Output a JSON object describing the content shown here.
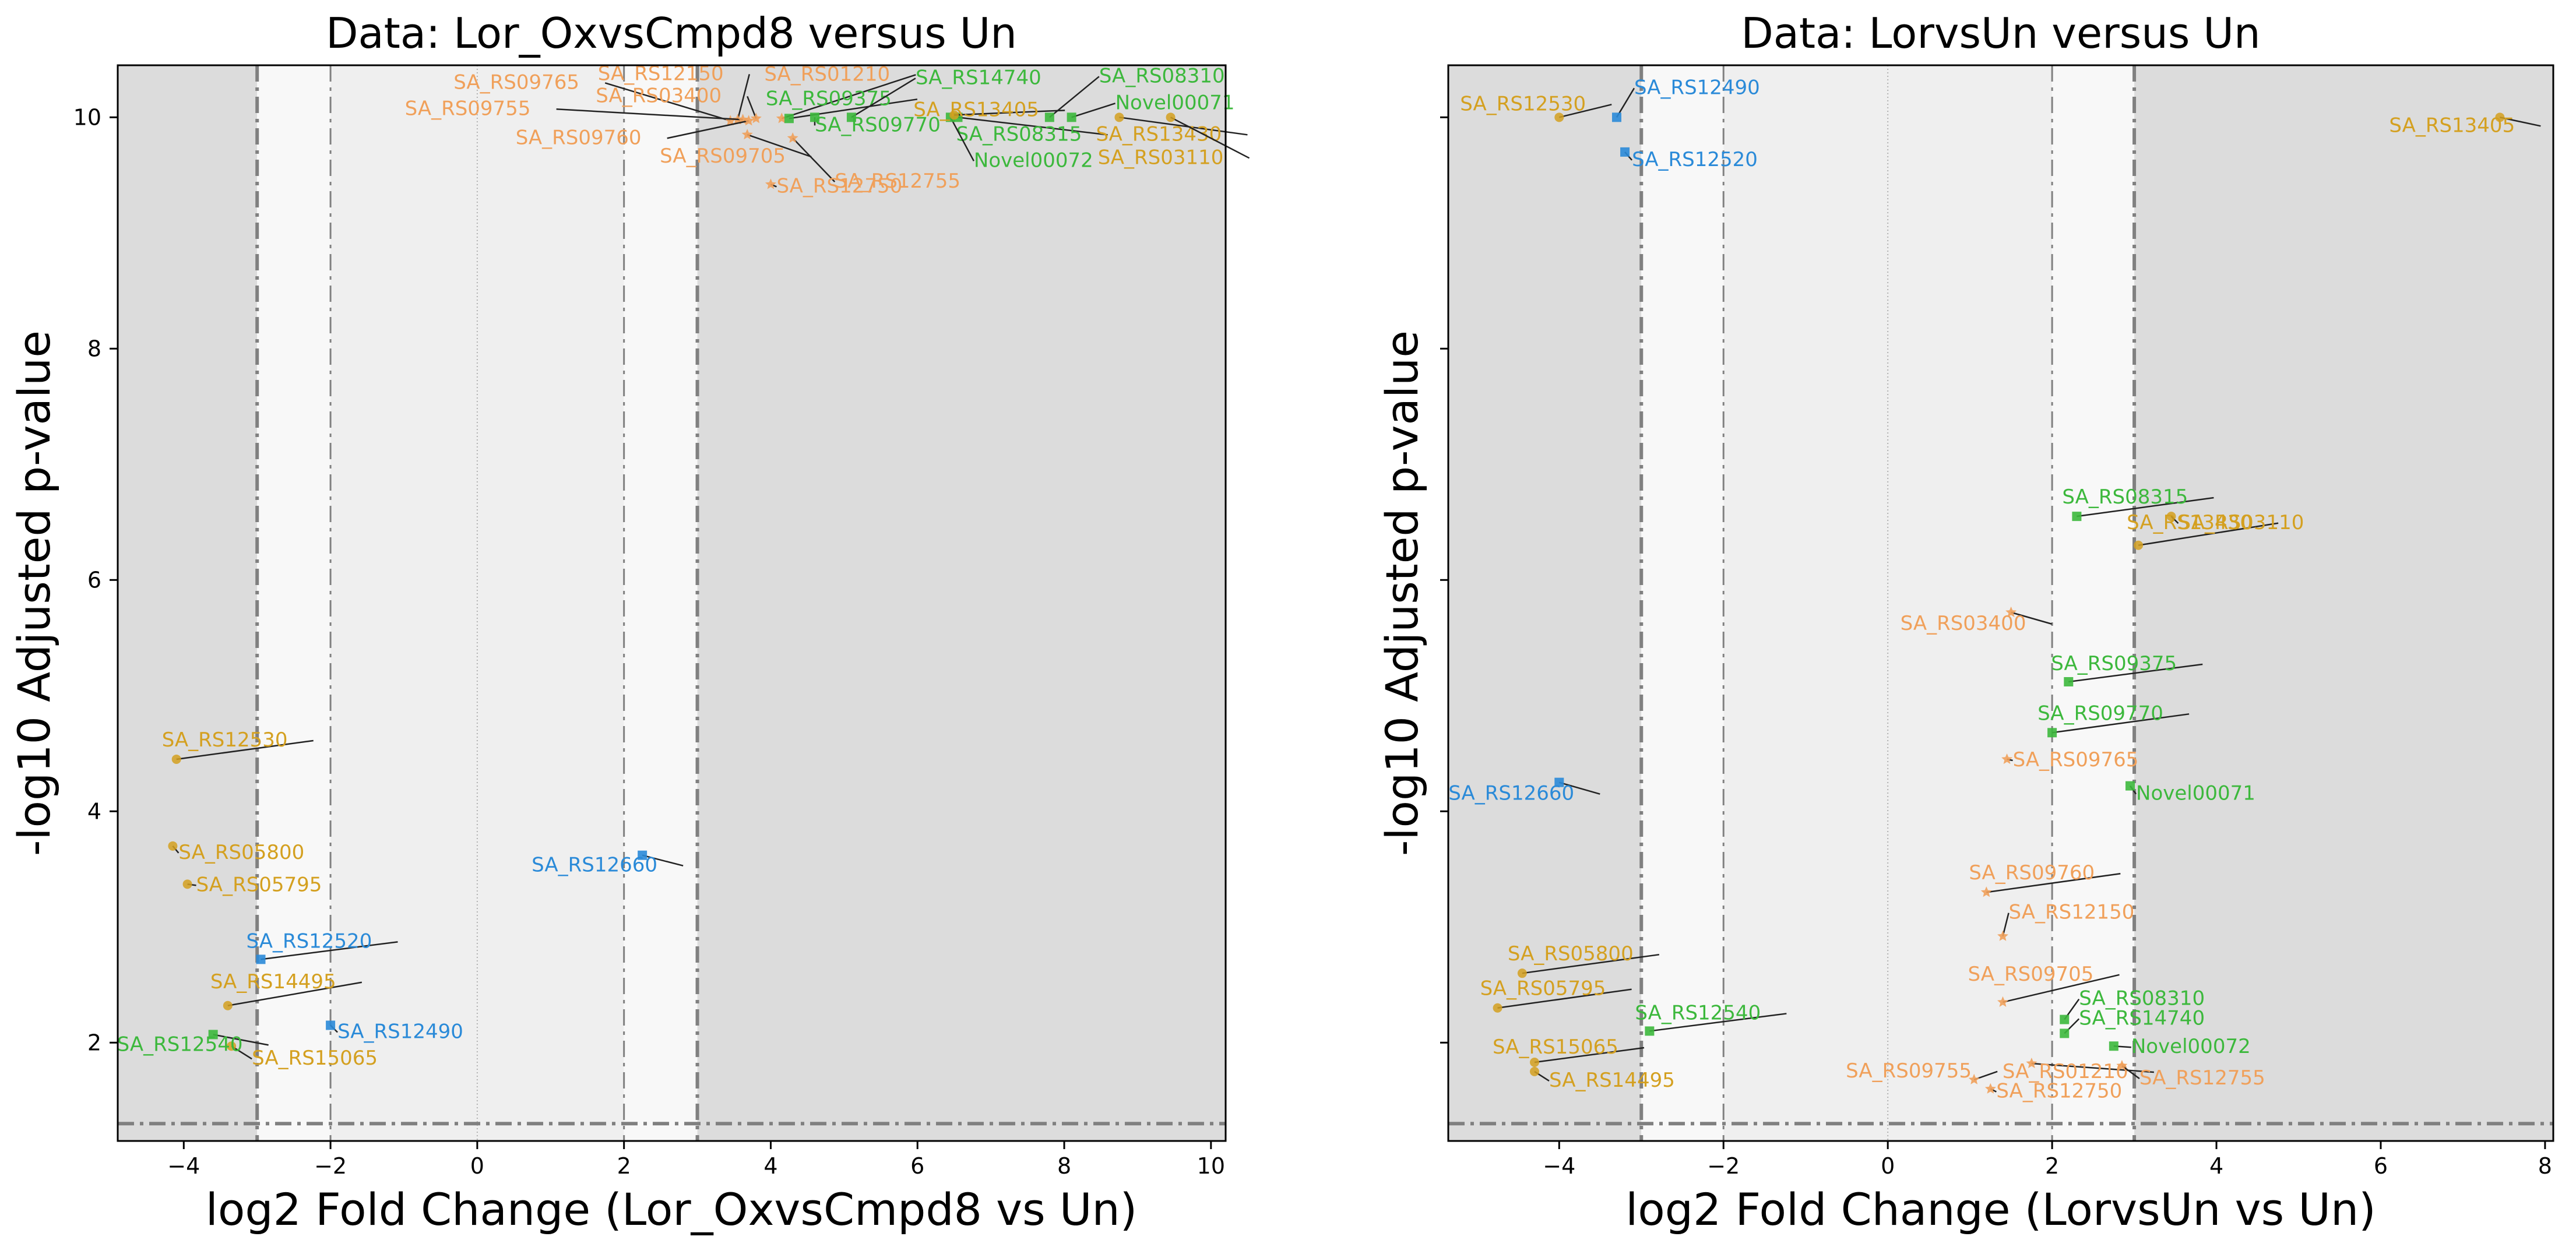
{
  "chart_data": [
    {
      "type": "scatter",
      "title": "Data: Lor_OxvsCmpd8 versus Un",
      "xlabel": "log2 Fold Change (Lor_OxvsCmpd8 vs Un)",
      "ylabel": "-log10 Adjusted p-value",
      "xlim": [
        -4.9,
        10.2
      ],
      "ylim": [
        1.15,
        10.45
      ],
      "xticks": [
        -4,
        -2,
        0,
        2,
        4,
        6,
        8,
        10
      ],
      "yticks": [
        2,
        4,
        6,
        8,
        10
      ],
      "fc_thresholds": [
        -3,
        -2,
        2,
        3
      ],
      "pval_threshold": 1.3,
      "points": [
        {
          "name": "SA_RS09765",
          "x": 3.45,
          "y": 9.97,
          "group": "orange",
          "shape": "star"
        },
        {
          "name": "SA_RS12150",
          "x": 3.55,
          "y": 9.98,
          "group": "orange",
          "shape": "star"
        },
        {
          "name": "SA_RS09755",
          "x": 3.62,
          "y": 9.98,
          "group": "orange",
          "shape": "star"
        },
        {
          "name": "SA_RS03400",
          "x": 3.8,
          "y": 9.99,
          "group": "orange",
          "shape": "star"
        },
        {
          "name": "SA_RS09760",
          "x": 3.7,
          "y": 9.97,
          "group": "orange",
          "shape": "star"
        },
        {
          "name": "SA_RS09705",
          "x": 3.68,
          "y": 9.85,
          "group": "orange",
          "shape": "star"
        },
        {
          "name": "SA_RS01210",
          "x": 4.15,
          "y": 9.99,
          "group": "orange",
          "shape": "star"
        },
        {
          "name": "SA_RS12755",
          "x": 4.3,
          "y": 9.82,
          "group": "orange",
          "shape": "star"
        },
        {
          "name": "SA_RS12750",
          "x": 4.0,
          "y": 9.42,
          "group": "orange",
          "shape": "star"
        },
        {
          "name": "SA_RS09375",
          "x": 4.25,
          "y": 9.99,
          "group": "green",
          "shape": "square"
        },
        {
          "name": "SA_RS09770",
          "x": 4.6,
          "y": 10.0,
          "group": "green",
          "shape": "square"
        },
        {
          "name": "SA_RS14740",
          "x": 5.1,
          "y": 10.0,
          "group": "green",
          "shape": "square"
        },
        {
          "name": "SA_RS08315",
          "x": 6.55,
          "y": 10.0,
          "group": "green",
          "shape": "square"
        },
        {
          "name": "Novel00072",
          "x": 6.45,
          "y": 10.0,
          "group": "green",
          "shape": "square"
        },
        {
          "name": "SA_RS08310",
          "x": 7.8,
          "y": 10.0,
          "group": "green",
          "shape": "square"
        },
        {
          "name": "Novel00071",
          "x": 8.1,
          "y": 10.0,
          "group": "green",
          "shape": "square"
        },
        {
          "name": "SA_RS13405",
          "x": 6.5,
          "y": 10.02,
          "group": "gold",
          "shape": "circle"
        },
        {
          "name": "SA_RS13430",
          "x": 8.75,
          "y": 10.0,
          "group": "gold",
          "shape": "circle"
        },
        {
          "name": "SA_RS03110",
          "x": 9.45,
          "y": 10.0,
          "group": "gold",
          "shape": "circle"
        },
        {
          "name": "SA_RS12530",
          "x": -4.1,
          "y": 4.45,
          "group": "gold",
          "shape": "circle"
        },
        {
          "name": "SA_RS05800",
          "x": -4.15,
          "y": 3.7,
          "group": "gold",
          "shape": "circle"
        },
        {
          "name": "SA_RS05795",
          "x": -3.95,
          "y": 3.37,
          "group": "gold",
          "shape": "circle"
        },
        {
          "name": "SA_RS14495",
          "x": -3.4,
          "y": 2.32,
          "group": "gold",
          "shape": "circle"
        },
        {
          "name": "SA_RS15065",
          "x": -3.35,
          "y": 1.97,
          "group": "gold",
          "shape": "circle"
        },
        {
          "name": "SA_RS12540",
          "x": -3.6,
          "y": 2.07,
          "group": "green",
          "shape": "square"
        },
        {
          "name": "SA_RS12660",
          "x": 2.25,
          "y": 3.62,
          "group": "blue",
          "shape": "square"
        },
        {
          "name": "SA_RS12520",
          "x": -2.95,
          "y": 2.72,
          "group": "blue",
          "shape": "square"
        },
        {
          "name": "SA_RS12490",
          "x": -2.0,
          "y": 2.15,
          "group": "blue",
          "shape": "square"
        }
      ]
    },
    {
      "type": "scatter",
      "title": "Data: LorvsUn versus Un",
      "xlabel": "log2 Fold Change (LorvsUn vs Un)",
      "ylabel": "-log10 Adjusted p-value",
      "xlim": [
        -5.35,
        8.1
      ],
      "ylim": [
        1.15,
        10.45
      ],
      "xticks": [
        -4,
        -2,
        0,
        2,
        4,
        6,
        8
      ],
      "yticks": [
        2,
        4,
        6,
        8,
        10
      ],
      "fc_thresholds": [
        -3,
        -2,
        2,
        3
      ],
      "pval_threshold": 1.3,
      "points": [
        {
          "name": "SA_RS12530",
          "x": -4.0,
          "y": 10.0,
          "group": "gold",
          "shape": "circle"
        },
        {
          "name": "SA_RS12490",
          "x": -3.3,
          "y": 10.0,
          "group": "blue",
          "shape": "square"
        },
        {
          "name": "SA_RS12520",
          "x": -3.2,
          "y": 9.7,
          "group": "blue",
          "shape": "square"
        },
        {
          "name": "SA_RS13405",
          "x": 7.45,
          "y": 10.0,
          "group": "gold",
          "shape": "circle"
        },
        {
          "name": "SA_RS13430",
          "x": 3.05,
          "y": 6.3,
          "group": "gold",
          "shape": "circle"
        },
        {
          "name": "SA_RS08315",
          "x": 2.3,
          "y": 6.55,
          "group": "green",
          "shape": "square"
        },
        {
          "name": "SA_RS03110",
          "x": 3.45,
          "y": 6.55,
          "group": "gold",
          "shape": "circle"
        },
        {
          "name": "SA_RS03400",
          "x": 1.5,
          "y": 5.72,
          "group": "orange",
          "shape": "star"
        },
        {
          "name": "SA_RS09375",
          "x": 2.2,
          "y": 5.12,
          "group": "green",
          "shape": "square"
        },
        {
          "name": "SA_RS09770",
          "x": 2.0,
          "y": 4.68,
          "group": "green",
          "shape": "square"
        },
        {
          "name": "SA_RS09765",
          "x": 1.45,
          "y": 4.45,
          "group": "orange",
          "shape": "star"
        },
        {
          "name": "Novel00071",
          "x": 2.95,
          "y": 4.22,
          "group": "green",
          "shape": "square"
        },
        {
          "name": "SA_RS12660",
          "x": -4.0,
          "y": 4.25,
          "group": "blue",
          "shape": "square"
        },
        {
          "name": "SA_RS09760",
          "x": 1.2,
          "y": 3.3,
          "group": "orange",
          "shape": "star"
        },
        {
          "name": "SA_RS12150",
          "x": 1.4,
          "y": 2.92,
          "group": "orange",
          "shape": "star"
        },
        {
          "name": "SA_RS09705",
          "x": 1.4,
          "y": 2.35,
          "group": "orange",
          "shape": "star"
        },
        {
          "name": "SA_RS05800",
          "x": -4.45,
          "y": 2.6,
          "group": "gold",
          "shape": "circle"
        },
        {
          "name": "SA_RS05795",
          "x": -4.75,
          "y": 2.3,
          "group": "gold",
          "shape": "circle"
        },
        {
          "name": "SA_RS12540",
          "x": -2.9,
          "y": 2.1,
          "group": "green",
          "shape": "square"
        },
        {
          "name": "SA_RS08310",
          "x": 2.15,
          "y": 2.2,
          "group": "green",
          "shape": "square"
        },
        {
          "name": "SA_RS14740",
          "x": 2.15,
          "y": 2.08,
          "group": "green",
          "shape": "square"
        },
        {
          "name": "Novel00072",
          "x": 2.75,
          "y": 1.97,
          "group": "green",
          "shape": "square"
        },
        {
          "name": "SA_RS15065",
          "x": -4.3,
          "y": 1.83,
          "group": "gold",
          "shape": "circle"
        },
        {
          "name": "SA_RS14495",
          "x": -4.3,
          "y": 1.75,
          "group": "gold",
          "shape": "circle"
        },
        {
          "name": "SA_RS09755",
          "x": 1.05,
          "y": 1.68,
          "group": "orange",
          "shape": "star"
        },
        {
          "name": "SA_RS01210",
          "x": 1.75,
          "y": 1.82,
          "group": "orange",
          "shape": "star"
        },
        {
          "name": "SA_RS12755",
          "x": 2.85,
          "y": 1.8,
          "group": "orange",
          "shape": "star"
        },
        {
          "name": "SA_RS12750",
          "x": 1.25,
          "y": 1.6,
          "group": "orange",
          "shape": "star"
        }
      ]
    }
  ],
  "colors": {
    "orange": "#f0a05a",
    "gold": "#d4a020",
    "green": "#3cb83c",
    "blue": "#2a8ad8",
    "band_outer": "#dcdcdc",
    "band_mid": "#efefef",
    "band_inner": "#f8f8f8",
    "threshold_line": "#808080",
    "leader_line": "#222222"
  }
}
